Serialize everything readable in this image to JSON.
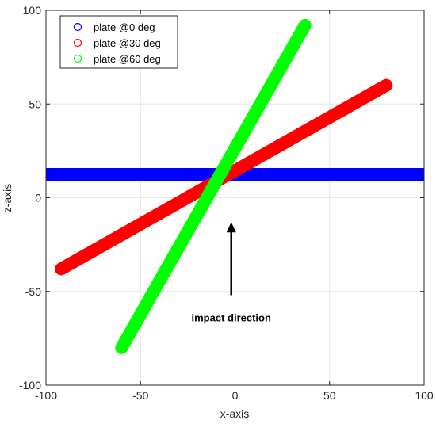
{
  "chart_data": {
    "type": "scatter",
    "title": "",
    "xlabel": "x-axis",
    "ylabel": "z-axis",
    "xlim": [
      -100,
      100
    ],
    "ylim": [
      -100,
      100
    ],
    "xticks": [
      -100,
      -50,
      0,
      50,
      100
    ],
    "yticks": [
      -100,
      -50,
      0,
      50,
      100
    ],
    "xtick_labels": [
      "-100",
      "-50",
      "0",
      "50",
      "100"
    ],
    "ytick_labels": [
      "-100",
      "-50",
      "0",
      "50",
      "100"
    ],
    "grid": true,
    "legend_position": "top-left",
    "series": [
      {
        "name": "plate @0 deg",
        "color": "#0000ff",
        "marker": "circle",
        "start": [
          -100,
          12.5
        ],
        "end": [
          100,
          12.5
        ]
      },
      {
        "name": "plate @30 deg",
        "color": "#ff0000",
        "marker": "circle",
        "start": [
          -92,
          -38
        ],
        "end": [
          80,
          60
        ]
      },
      {
        "name": "plate @60 deg",
        "color": "#00ff00",
        "marker": "circle",
        "start": [
          -60,
          -80
        ],
        "end": [
          37,
          92
        ]
      }
    ],
    "annotations": [
      {
        "text": "impact direction",
        "arrow_from": [
          -2,
          -52
        ],
        "arrow_to": [
          -2,
          -13
        ]
      }
    ]
  }
}
